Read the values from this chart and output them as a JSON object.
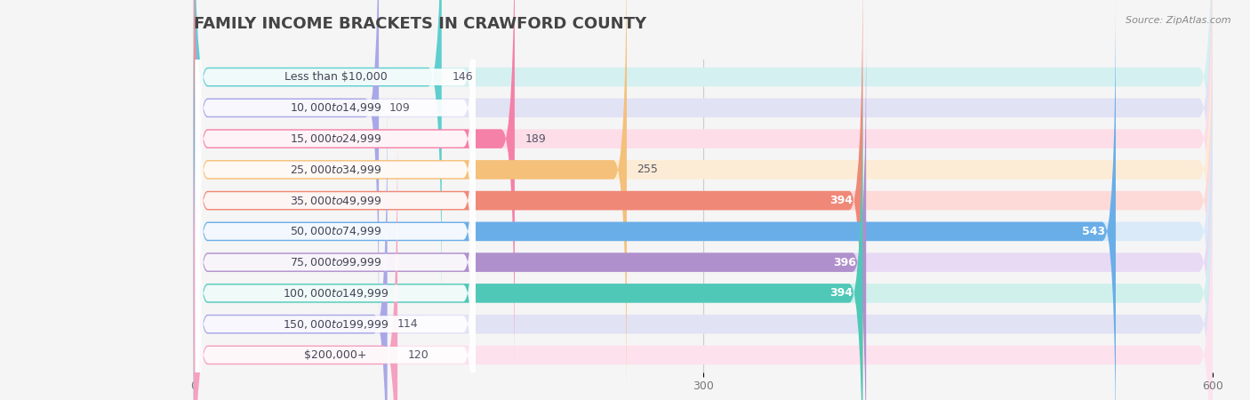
{
  "title": "Family Income Brackets in Crawford County",
  "title_display": "FAMILY INCOME BRACKETS IN CRAWFORD COUNTY",
  "source": "Source: ZipAtlas.com",
  "categories": [
    "Less than $10,000",
    "$10,000 to $14,999",
    "$15,000 to $24,999",
    "$25,000 to $34,999",
    "$35,000 to $49,999",
    "$50,000 to $74,999",
    "$75,000 to $99,999",
    "$100,000 to $149,999",
    "$150,000 to $199,999",
    "$200,000+"
  ],
  "values": [
    146,
    109,
    189,
    255,
    394,
    543,
    396,
    394,
    114,
    120
  ],
  "bar_colors": [
    "#5ecece",
    "#a8a8e8",
    "#f580a8",
    "#f5c07a",
    "#f08878",
    "#6aaee8",
    "#b090cc",
    "#50c8b8",
    "#a8a8e8",
    "#f5a0c0"
  ],
  "bar_bg_colors": [
    "#d5f0f0",
    "#e2e2f5",
    "#fcdde8",
    "#fdecd5",
    "#fddad8",
    "#daeaf8",
    "#e8daf5",
    "#d0f0ec",
    "#e2e2f5",
    "#fde2ee"
  ],
  "label_bg_color": "#ffffff",
  "xlim": [
    0,
    600
  ],
  "xticks": [
    0,
    300,
    600
  ],
  "title_fontsize": 13,
  "label_fontsize": 9,
  "value_fontsize": 9,
  "background_color": "#f5f5f5",
  "value_threshold": 300
}
